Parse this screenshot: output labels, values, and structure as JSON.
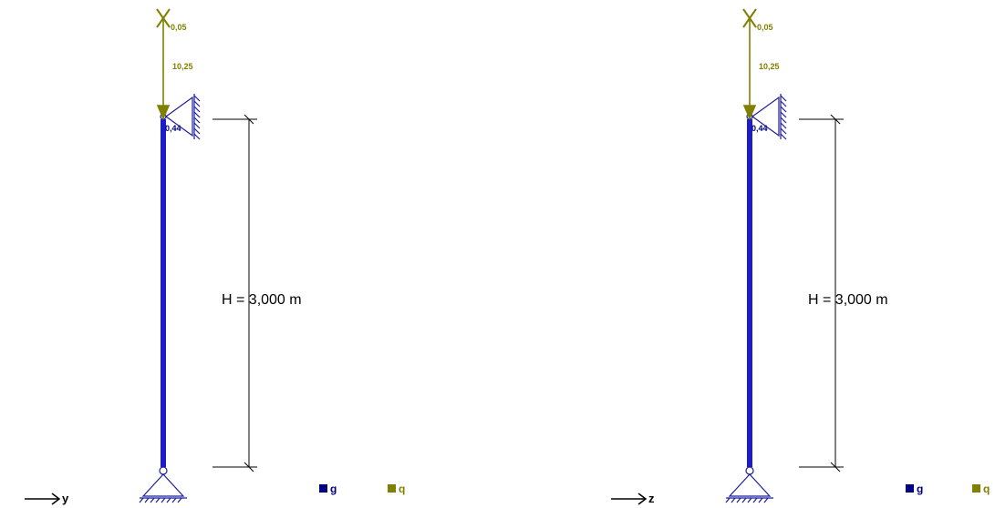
{
  "colors": {
    "g": "#000080",
    "q": "#808000",
    "column": "#1c1cc8",
    "support": "#1c1c9c",
    "line": "#000000"
  },
  "panels": [
    {
      "axis_label": "y",
      "height_label": "H = 3,000 m",
      "load_value": "10,25",
      "moment_value": "0,05",
      "reaction_value": "0,44",
      "legend": [
        {
          "key": "g",
          "label": "g"
        },
        {
          "key": "q",
          "label": "q"
        }
      ]
    },
    {
      "axis_label": "z",
      "height_label": "H = 3,000 m",
      "load_value": "10,25",
      "moment_value": "0,05",
      "reaction_value": "0,44",
      "legend": [
        {
          "key": "g",
          "label": "g"
        },
        {
          "key": "q",
          "label": "q"
        }
      ]
    }
  ]
}
